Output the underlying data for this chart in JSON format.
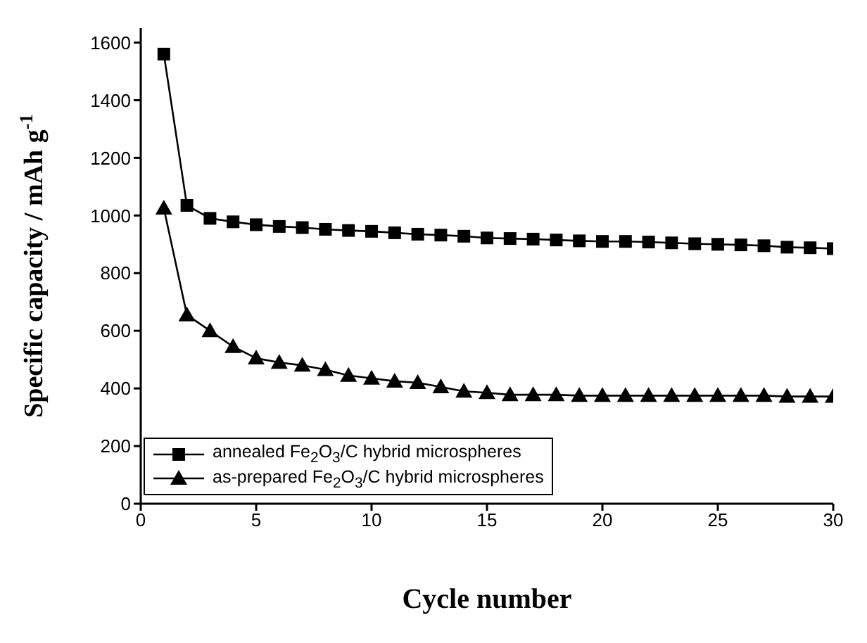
{
  "chart_data": {
    "type": "line",
    "xlabel": "Cycle number",
    "ylabel": "Specific capacity / mAh g$^{-1}$",
    "x": [
      1,
      2,
      3,
      4,
      5,
      6,
      7,
      8,
      9,
      10,
      11,
      12,
      13,
      14,
      15,
      16,
      17,
      18,
      19,
      20,
      21,
      22,
      23,
      24,
      25,
      26,
      27,
      28,
      29,
      30
    ],
    "series": [
      {
        "name": "annealed Fe$_{2}$O$_{3}$/C hybrid microspheres",
        "color": "#000000",
        "marker": "square",
        "values": [
          1560,
          1035,
          990,
          978,
          968,
          962,
          958,
          952,
          948,
          945,
          940,
          935,
          932,
          928,
          922,
          920,
          918,
          915,
          912,
          910,
          910,
          908,
          905,
          902,
          900,
          898,
          895,
          890,
          888,
          885
        ]
      },
      {
        "name": "as-prepared Fe$_{2}$O$_{3}$/C hybrid microspheres",
        "color": "#000000",
        "marker": "triangle",
        "values": [
          1025,
          655,
          600,
          545,
          505,
          490,
          480,
          465,
          445,
          435,
          425,
          420,
          405,
          390,
          385,
          378,
          378,
          378,
          375,
          375,
          375,
          375,
          375,
          375,
          375,
          375,
          375,
          372,
          372,
          372
        ]
      }
    ],
    "xlim": [
      0,
      30
    ],
    "xticks": [
      0,
      5,
      10,
      15,
      20,
      25,
      30
    ],
    "ylim": [
      0,
      1650
    ],
    "yticks": [
      0,
      200,
      400,
      600,
      800,
      1000,
      1200,
      1400,
      1600
    ],
    "grid": false,
    "legend": "bottom left",
    "line_style": "solid"
  }
}
